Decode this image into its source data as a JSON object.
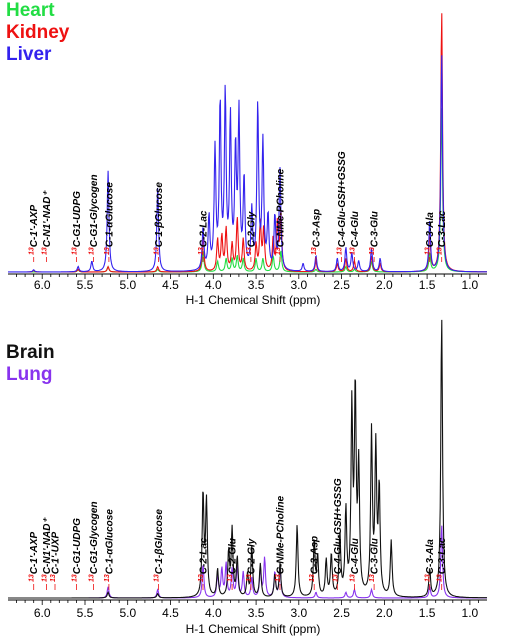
{
  "colors": {
    "heart": "#22dd44",
    "kidney": "#ee1111",
    "liver": "#3322ee",
    "brain": "#111111",
    "lung": "#8833ee",
    "anno_isotope": "#ee1111",
    "anno_leader": "#ee1111",
    "axis": "#000000"
  },
  "chart_data": [
    {
      "type": "line",
      "panel": "top",
      "title": "",
      "xlabel": "H-1 Chemical Shift (ppm)",
      "ylabel": "",
      "xlim": [
        6.4,
        0.8
      ],
      "x_reversed": true,
      "grid": false,
      "legend": {
        "placement": "top-left",
        "entries": [
          "Heart",
          "Kidney",
          "Liver"
        ]
      },
      "xticks": [
        "6.0",
        "5.5",
        "5.0",
        "4.5",
        "4.0",
        "3.5",
        "3.0",
        "2.5",
        "2.0",
        "1.5",
        "1.0"
      ],
      "tick_values": [
        6.0,
        5.5,
        5.0,
        4.5,
        4.0,
        3.5,
        3.0,
        2.5,
        2.0,
        1.5,
        1.0
      ],
      "series": [
        {
          "name": "Heart",
          "peaks": [
            [
              5.58,
              0.008
            ],
            [
              5.23,
              0.02
            ],
            [
              4.65,
              0.01
            ],
            [
              4.12,
              0.08
            ],
            [
              3.95,
              0.04
            ],
            [
              3.85,
              0.05
            ],
            [
              3.78,
              0.05
            ],
            [
              3.72,
              0.06
            ],
            [
              3.65,
              0.05
            ],
            [
              3.5,
              0.05
            ],
            [
              3.42,
              0.05
            ],
            [
              3.3,
              0.06
            ],
            [
              3.21,
              0.08
            ],
            [
              2.8,
              0.01
            ],
            [
              2.45,
              0.02
            ],
            [
              2.35,
              0.01
            ],
            [
              2.15,
              0.04
            ],
            [
              1.47,
              0.07
            ],
            [
              1.33,
              0.62
            ]
          ]
        },
        {
          "name": "Kidney",
          "peaks": [
            [
              6.1,
              0.006
            ],
            [
              5.58,
              0.01
            ],
            [
              5.23,
              0.02
            ],
            [
              4.65,
              0.02
            ],
            [
              4.12,
              0.14
            ],
            [
              3.95,
              0.12
            ],
            [
              3.9,
              0.13
            ],
            [
              3.85,
              0.16
            ],
            [
              3.78,
              0.1
            ],
            [
              3.72,
              0.2
            ],
            [
              3.65,
              0.12
            ],
            [
              3.5,
              0.1
            ],
            [
              3.45,
              0.18
            ],
            [
              3.41,
              0.16
            ],
            [
              3.3,
              0.12
            ],
            [
              3.25,
              0.18
            ],
            [
              3.21,
              0.22
            ],
            [
              2.8,
              0.04
            ],
            [
              2.55,
              0.03
            ],
            [
              2.45,
              0.05
            ],
            [
              2.35,
              0.04
            ],
            [
              2.15,
              0.06
            ],
            [
              2.05,
              0.03
            ],
            [
              1.47,
              0.14
            ],
            [
              1.33,
              0.98
            ]
          ]
        },
        {
          "name": "Liver",
          "peaks": [
            [
              6.1,
              0.008
            ],
            [
              5.58,
              0.02
            ],
            [
              5.42,
              0.04
            ],
            [
              5.23,
              0.38
            ],
            [
              4.65,
              0.32
            ],
            [
              4.12,
              0.16
            ],
            [
              4.05,
              0.2
            ],
            [
              3.98,
              0.45
            ],
            [
              3.92,
              0.62
            ],
            [
              3.86,
              0.65
            ],
            [
              3.8,
              0.56
            ],
            [
              3.74,
              0.44
            ],
            [
              3.7,
              0.58
            ],
            [
              3.64,
              0.34
            ],
            [
              3.55,
              0.22
            ],
            [
              3.48,
              0.62
            ],
            [
              3.42,
              0.48
            ],
            [
              3.36,
              0.2
            ],
            [
              3.28,
              0.2
            ],
            [
              3.22,
              0.38
            ],
            [
              2.95,
              0.03
            ],
            [
              2.8,
              0.06
            ],
            [
              2.55,
              0.05
            ],
            [
              2.45,
              0.09
            ],
            [
              2.38,
              0.07
            ],
            [
              2.3,
              0.04
            ],
            [
              2.15,
              0.09
            ],
            [
              2.05,
              0.05
            ],
            [
              1.47,
              0.19
            ],
            [
              1.33,
              0.82
            ]
          ]
        }
      ],
      "annotations": [
        {
          "isotope": "13",
          "label": "C-1'-AXP",
          "x": 6.1
        },
        {
          "isotope": "13",
          "label": "C-N1'-NAD⁺",
          "x": 5.95
        },
        {
          "isotope": "13",
          "label": "C-G1-UDPG",
          "x": 5.6
        },
        {
          "isotope": "13",
          "label": "C-G1-Glycogen",
          "x": 5.4
        },
        {
          "isotope": "13",
          "label": "C-1-αGlucose",
          "x": 5.22
        },
        {
          "isotope": "13",
          "label": "C-1-βGlucose",
          "x": 4.64
        },
        {
          "isotope": "13",
          "label": "C-2-Lac",
          "x": 4.12
        },
        {
          "isotope": "13",
          "label": "C-2-Gly",
          "x": 3.56
        },
        {
          "isotope": "13",
          "label": "C-NMe-PCholine",
          "x": 3.22
        },
        {
          "isotope": "13",
          "label": "C-3-Asp",
          "x": 2.8
        },
        {
          "isotope": "13",
          "label": "C-4-Glu-GSH+GSSG",
          "x": 2.5
        },
        {
          "isotope": "13",
          "label": "C-4-Glu",
          "x": 2.35
        },
        {
          "isotope": "13",
          "label": "C-3-Glu",
          "x": 2.12
        },
        {
          "isotope": "13",
          "label": "C-3-Ala",
          "x": 1.47
        },
        {
          "isotope": "13",
          "label": "C-3-Lac",
          "x": 1.33
        }
      ]
    },
    {
      "type": "line",
      "panel": "bottom",
      "title": "",
      "xlabel": "H-1 Chemical Shift (ppm)",
      "ylabel": "",
      "xlim": [
        6.4,
        0.8
      ],
      "x_reversed": true,
      "grid": false,
      "legend": {
        "placement": "top-left",
        "entries": [
          "Brain",
          "Lung"
        ]
      },
      "xticks": [
        "6.0",
        "5.5",
        "5.0",
        "4.5",
        "4.0",
        "3.5",
        "3.0",
        "2.5",
        "2.0",
        "1.5",
        "1.0"
      ],
      "tick_values": [
        6.0,
        5.5,
        5.0,
        4.5,
        4.0,
        3.5,
        3.0,
        2.5,
        2.0,
        1.5,
        1.0
      ],
      "series": [
        {
          "name": "Brain",
          "peaks": [
            [
              5.23,
              0.02
            ],
            [
              4.65,
              0.015
            ],
            [
              4.12,
              0.37
            ],
            [
              4.08,
              0.34
            ],
            [
              3.95,
              0.1
            ],
            [
              3.82,
              0.16
            ],
            [
              3.78,
              0.24
            ],
            [
              3.72,
              0.14
            ],
            [
              3.6,
              0.08
            ],
            [
              3.55,
              0.18
            ],
            [
              3.45,
              0.12
            ],
            [
              3.28,
              0.08
            ],
            [
              3.22,
              0.12
            ],
            [
              3.02,
              0.26
            ],
            [
              2.82,
              0.2
            ],
            [
              2.78,
              0.14
            ],
            [
              2.68,
              0.13
            ],
            [
              2.62,
              0.15
            ],
            [
              2.52,
              0.22
            ],
            [
              2.45,
              0.3
            ],
            [
              2.38,
              0.66
            ],
            [
              2.34,
              0.72
            ],
            [
              2.3,
              0.45
            ],
            [
              2.15,
              0.58
            ],
            [
              2.1,
              0.52
            ],
            [
              2.06,
              0.38
            ],
            [
              1.92,
              0.2
            ],
            [
              1.47,
              0.1
            ],
            [
              1.33,
              1.0
            ]
          ]
        },
        {
          "name": "Lung",
          "peaks": [
            [
              5.23,
              0.04
            ],
            [
              4.65,
              0.03
            ],
            [
              4.12,
              0.12
            ],
            [
              3.95,
              0.08
            ],
            [
              3.9,
              0.1
            ],
            [
              3.85,
              0.12
            ],
            [
              3.78,
              0.1
            ],
            [
              3.72,
              0.11
            ],
            [
              3.65,
              0.09
            ],
            [
              3.55,
              0.07
            ],
            [
              3.45,
              0.1
            ],
            [
              3.4,
              0.14
            ],
            [
              3.28,
              0.09
            ],
            [
              3.22,
              0.11
            ],
            [
              2.8,
              0.02
            ],
            [
              2.45,
              0.02
            ],
            [
              2.35,
              0.03
            ],
            [
              2.15,
              0.03
            ],
            [
              1.47,
              0.04
            ],
            [
              1.33,
              0.26
            ]
          ]
        }
      ],
      "annotations": [
        {
          "isotope": "13",
          "label": "C-1'-AXP",
          "x": 6.1
        },
        {
          "isotope": "13",
          "label": "C-N1'-NAD⁺",
          "x": 5.95
        },
        {
          "isotope": "13",
          "label": "C-1'-UXP",
          "x": 5.85
        },
        {
          "isotope": "13",
          "label": "C-G1-UDPG",
          "x": 5.6
        },
        {
          "isotope": "13",
          "label": "C-G1-Glycogen",
          "x": 5.4
        },
        {
          "isotope": "13",
          "label": "C-1-αGlucose",
          "x": 5.22
        },
        {
          "isotope": "13",
          "label": "C-1-βGlucose",
          "x": 4.64
        },
        {
          "isotope": "13",
          "label": "C-2-Lac",
          "x": 4.12
        },
        {
          "isotope": "13",
          "label": "C-2-Glu",
          "x": 3.78
        },
        {
          "isotope": "13",
          "label": "C-2-Gly",
          "x": 3.56
        },
        {
          "isotope": "13",
          "label": "C-NMe-PCholine",
          "x": 3.22
        },
        {
          "isotope": "13",
          "label": "C-3-Asp",
          "x": 2.82
        },
        {
          "isotope": "13",
          "label": "C-4-Glu-GSH+GSSG",
          "x": 2.55
        },
        {
          "isotope": "13",
          "label": "C-4-Glu",
          "x": 2.35
        },
        {
          "isotope": "13",
          "label": "C-3-Glu",
          "x": 2.12
        },
        {
          "isotope": "13",
          "label": "C-3-Ala",
          "x": 1.47
        },
        {
          "isotope": "13",
          "label": "C-3-Lac",
          "x": 1.33
        }
      ]
    }
  ]
}
